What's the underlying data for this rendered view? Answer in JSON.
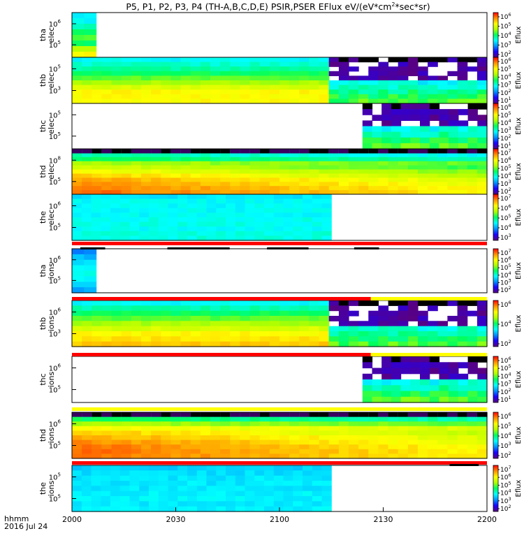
{
  "chart_data": {
    "type": "heatmap",
    "title_parts": [
      "P5, P1, P2, P3, P4 (TH-A,B,C,D,E) PSIR,PSER EFlux eV/(eV*cm",
      "2",
      "*sec*sr)"
    ],
    "x_axis": {
      "tick_labels": [
        "2000",
        "2030",
        "2100",
        "2130",
        "2200"
      ],
      "label_line1": "hhmm",
      "label_line2": "2016 Jul 24",
      "range": [
        "20:00",
        "22:00"
      ]
    },
    "colorbar_label": "Eflux",
    "panels": [
      {
        "id": "tha_elec",
        "label_line1": "tha",
        "label_line2": "elec",
        "y_ticks": [
          "6",
          "5"
        ],
        "data_start": "20:00",
        "data_end": "20:07",
        "cbar_exps": [
          "6",
          "5",
          "4",
          "3",
          "2"
        ]
      },
      {
        "id": "thb_elec",
        "label_line1": "thb",
        "label_line2": "elec",
        "y_ticks": [
          "5",
          "3"
        ],
        "data_start": "20:00",
        "data_end": "22:00",
        "cbar_exps": [
          "6",
          "5",
          "4",
          "3",
          "2",
          "1"
        ]
      },
      {
        "id": "thc_elec",
        "label_line1": "thc",
        "label_line2": "elec",
        "y_ticks": [
          "5",
          "5"
        ],
        "data_start": "21:24",
        "data_end": "22:00",
        "cbar_exps": [
          "6",
          "5",
          "4",
          "3",
          "2",
          "1"
        ]
      },
      {
        "id": "thd_elec",
        "label_line1": "thd",
        "label_line2": "elec",
        "y_ticks": [
          "8",
          "5"
        ],
        "data_start": "20:00",
        "data_end": "22:00",
        "cbar_exps": [
          "7",
          "6",
          "5",
          "4",
          "3",
          "2"
        ]
      },
      {
        "id": "the_elec",
        "label_line1": "the",
        "label_line2": "elec",
        "y_ticks": [
          "6",
          "5"
        ],
        "data_start": "20:00",
        "data_end": "21:15",
        "cbar_exps": [
          "7",
          "6",
          "5",
          "4",
          "3"
        ]
      },
      {
        "id": "tha_ions",
        "label_line1": "tha",
        "label_line2": "ions",
        "y_ticks": [
          "6",
          "5"
        ],
        "data_start": "20:00",
        "data_end": "20:07",
        "cbar_exps": [
          "7",
          "6",
          "5",
          "4",
          "3",
          "2"
        ]
      },
      {
        "id": "thb_ions",
        "label_line1": "thb",
        "label_line2": "ions",
        "y_ticks": [
          "6",
          "3"
        ],
        "data_start": "20:00",
        "data_end": "22:00",
        "cbar_exps": [
          "6",
          "4",
          "2"
        ]
      },
      {
        "id": "thc_ions",
        "label_line1": "thc",
        "label_line2": "ions",
        "y_ticks": [
          "6",
          "5"
        ],
        "data_start": "21:24",
        "data_end": "22:00",
        "cbar_exps": [
          "6",
          "5",
          "4",
          "3",
          "2",
          "1"
        ]
      },
      {
        "id": "thd_ions",
        "label_line1": "thd",
        "label_line2": "ions",
        "y_ticks": [
          "6",
          "5"
        ],
        "data_start": "20:00",
        "data_end": "22:00",
        "cbar_exps": [
          "6",
          "5",
          "4",
          "3",
          "2"
        ]
      },
      {
        "id": "the_ions",
        "label_line1": "the",
        "label_line2": "ions",
        "y_ticks": [
          "5",
          "5"
        ],
        "data_start": "20:00",
        "data_end": "21:15",
        "cbar_exps": [
          "7",
          "6",
          "5",
          "4",
          "3",
          "2"
        ]
      }
    ],
    "colors": {
      "flag_red": "#ff0000",
      "flag_yellow": "#ffff00",
      "flag_black": "#000000",
      "colormap": [
        "#5a0080",
        "#1a00ff",
        "#0090ff",
        "#00ffff",
        "#00ff60",
        "#b0ff00",
        "#ffff00",
        "#ff9000",
        "#ff0000"
      ]
    }
  }
}
